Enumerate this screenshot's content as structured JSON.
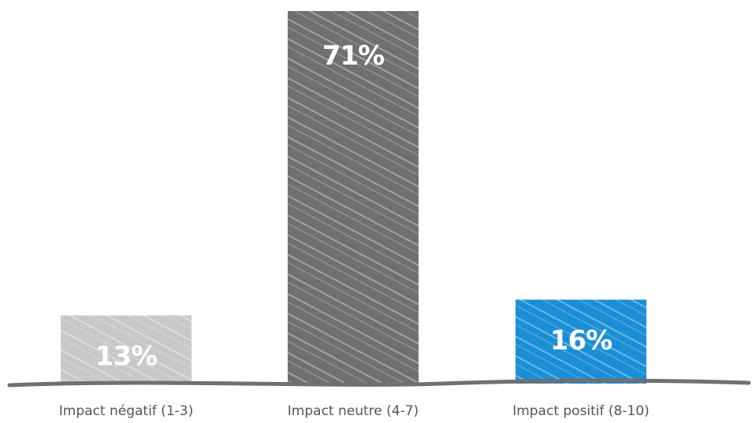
{
  "chart_data": {
    "type": "bar",
    "title": "",
    "xlabel": "",
    "ylabel": "",
    "ylim": [
      0,
      71
    ],
    "grid": false,
    "legend": "none",
    "categories": [
      "Impact négatif (1-3)",
      "Impact neutre (4-7)",
      "Impact positif (8-10)"
    ],
    "values": [
      13,
      71,
      16
    ],
    "value_labels": [
      "13%",
      "71%",
      "16%"
    ],
    "colors": [
      "#c8c8ca",
      "#707073",
      "#1a8fd6"
    ]
  }
}
